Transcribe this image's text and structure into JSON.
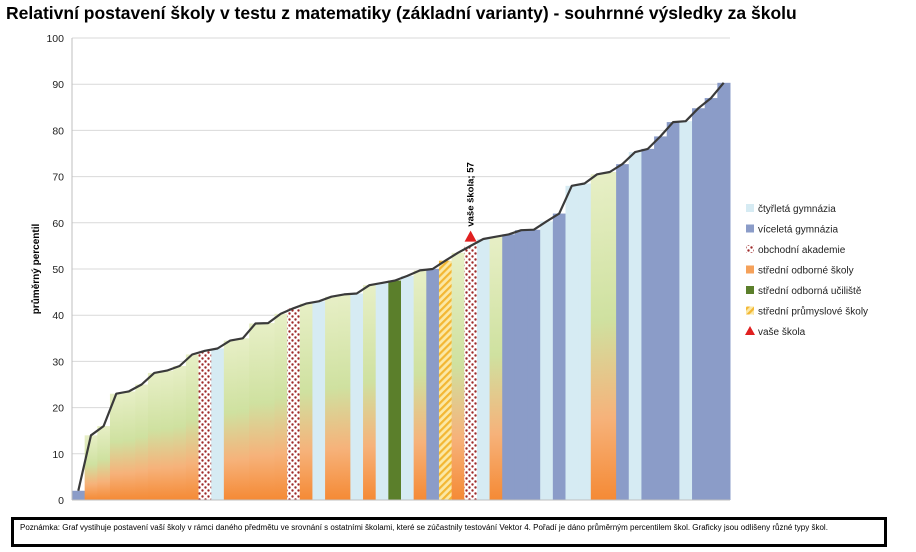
{
  "chart_data": {
    "type": "bar",
    "title": "Relativní postavení školy v testu z matematiky (základní varianty) - souhrnné výsledky za školu",
    "xlabel": "",
    "ylabel": "průměrný percentil",
    "ylim": [
      0,
      100
    ],
    "yticks": [
      0,
      10,
      20,
      30,
      40,
      50,
      60,
      70,
      80,
      90,
      100
    ],
    "grid": true,
    "legend_position": "right",
    "school_types": [
      {
        "key": "ctyrleta",
        "label": "čtyřletá gymnázia",
        "color": "#d6ebf3"
      },
      {
        "key": "vicelete",
        "label": "víceletá gymnázia",
        "color": "#8b9cc8"
      },
      {
        "key": "obchodni",
        "label": "obchodní akademie",
        "color": "#9e2a2a"
      },
      {
        "key": "odborne",
        "label": "střední odborné školy",
        "color": "#f5a15a"
      },
      {
        "key": "uciliste",
        "label": "střední odborná učiliště",
        "color": "#5b7f2b"
      },
      {
        "key": "prumyslove",
        "label": "střední průmyslové školy",
        "color": "#f3c542"
      },
      {
        "key": "vase",
        "label": "vaše škola",
        "color": "#e02020"
      }
    ],
    "schools": [
      {
        "value": 2,
        "type": "vicelete"
      },
      {
        "value": 14,
        "type": "odborne"
      },
      {
        "value": 16,
        "type": "odborne"
      },
      {
        "value": 23,
        "type": "odborne"
      },
      {
        "value": 23.5,
        "type": "odborne"
      },
      {
        "value": 25,
        "type": "odborne"
      },
      {
        "value": 27.5,
        "type": "odborne"
      },
      {
        "value": 28,
        "type": "odborne"
      },
      {
        "value": 29,
        "type": "odborne"
      },
      {
        "value": 31.5,
        "type": "odborne"
      },
      {
        "value": 32.3,
        "type": "obchodni"
      },
      {
        "value": 32.8,
        "type": "ctyrleta"
      },
      {
        "value": 34.5,
        "type": "odborne"
      },
      {
        "value": 35,
        "type": "odborne"
      },
      {
        "value": 38.2,
        "type": "odborne"
      },
      {
        "value": 38.3,
        "type": "odborne"
      },
      {
        "value": 40.3,
        "type": "odborne"
      },
      {
        "value": 41.5,
        "type": "obchodni"
      },
      {
        "value": 42.5,
        "type": "odborne"
      },
      {
        "value": 43,
        "type": "ctyrleta"
      },
      {
        "value": 44,
        "type": "odborne"
      },
      {
        "value": 44.5,
        "type": "odborne"
      },
      {
        "value": 44.7,
        "type": "ctyrleta"
      },
      {
        "value": 46.5,
        "type": "odborne"
      },
      {
        "value": 47,
        "type": "ctyrleta"
      },
      {
        "value": 47.5,
        "type": "uciliste"
      },
      {
        "value": 48.5,
        "type": "ctyrleta"
      },
      {
        "value": 49.7,
        "type": "odborne"
      },
      {
        "value": 50,
        "type": "vicelete"
      },
      {
        "value": 51.8,
        "type": "prumyslove"
      },
      {
        "value": 53.5,
        "type": "odborne"
      },
      {
        "value": 55,
        "type": "obchodni"
      },
      {
        "value": 56.5,
        "type": "ctyrleta"
      },
      {
        "value": 57,
        "type": "odborne"
      },
      {
        "value": 57.5,
        "type": "vicelete"
      },
      {
        "value": 58.4,
        "type": "vicelete"
      },
      {
        "value": 58.5,
        "type": "vicelete"
      },
      {
        "value": 60.3,
        "type": "ctyrleta"
      },
      {
        "value": 62,
        "type": "vicelete"
      },
      {
        "value": 68,
        "type": "ctyrleta"
      },
      {
        "value": 68.5,
        "type": "ctyrleta"
      },
      {
        "value": 70.5,
        "type": "odborne"
      },
      {
        "value": 71,
        "type": "odborne"
      },
      {
        "value": 72.7,
        "type": "vicelete"
      },
      {
        "value": 75.3,
        "type": "ctyrleta"
      },
      {
        "value": 76,
        "type": "vicelete"
      },
      {
        "value": 78.7,
        "type": "vicelete"
      },
      {
        "value": 81.8,
        "type": "vicelete"
      },
      {
        "value": 82,
        "type": "ctyrleta"
      },
      {
        "value": 84.8,
        "type": "vicelete"
      },
      {
        "value": 87,
        "type": "vicelete"
      },
      {
        "value": 90.3,
        "type": "vicelete"
      }
    ],
    "your_school": {
      "index": 31.5,
      "value": 57,
      "label": "vaše škola; 57"
    }
  },
  "note": "Poznámka: Graf vystihuje postavení vaší školy v rámci daného předmětu ve srovnání s ostatními školami, které se zúčastnily testování Vektor 4. Pořadí je dáno průměrným percentilem škol. Graficky jsou odlišeny různé typy škol."
}
